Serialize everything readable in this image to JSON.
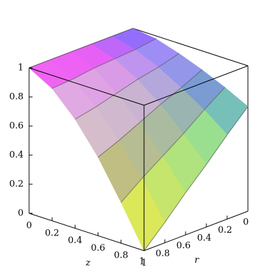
{
  "chart_data": {
    "type": "surface3d",
    "xlabel": "z",
    "ylabel": "r",
    "xlim": [
      0,
      1
    ],
    "ylim": [
      0,
      1
    ],
    "zlim": [
      0,
      1
    ],
    "xticks": [
      0,
      0.2,
      0.4,
      0.6,
      0.8,
      1
    ],
    "yticks": [
      0,
      0.2,
      0.4,
      0.6,
      0.8,
      1
    ],
    "zticks": [
      0,
      0.2,
      0.4,
      0.6,
      0.8,
      1
    ],
    "x": [
      0,
      0.2,
      0.4,
      0.6,
      0.8,
      1
    ],
    "y": [
      0,
      0.2,
      0.4,
      0.6,
      0.8,
      1
    ],
    "values": [
      [
        1,
        1,
        1,
        1,
        1,
        1
      ],
      [
        0.98,
        0.96,
        0.95,
        0.94,
        0.92,
        0.91
      ],
      [
        0.93,
        0.89,
        0.86,
        0.82,
        0.78,
        0.75
      ],
      [
        0.87,
        0.8,
        0.74,
        0.67,
        0.6,
        0.54
      ],
      [
        0.8,
        0.7,
        0.59,
        0.49,
        0.39,
        0.28
      ],
      [
        0.72,
        0.58,
        0.43,
        0.29,
        0.14,
        0
      ]
    ]
  }
}
